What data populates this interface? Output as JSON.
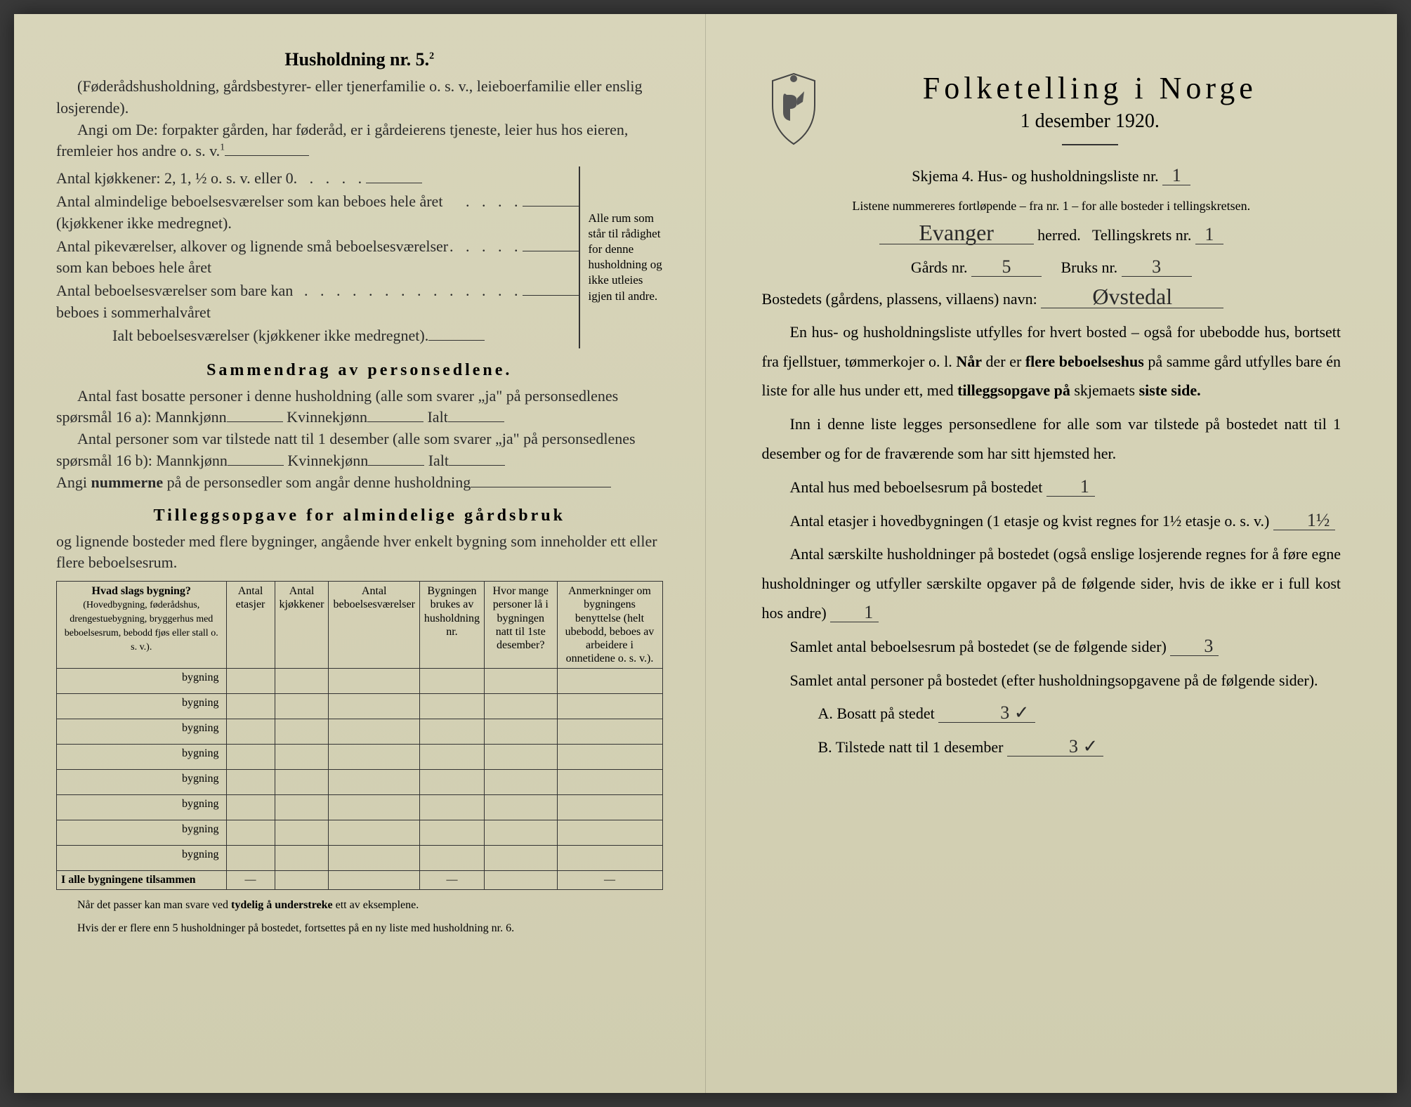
{
  "leftPage": {
    "h5": {
      "title": "Husholdning nr. 5.",
      "sup": "2",
      "paren": "(Føderådshusholdning, gårdsbestyrer- eller tjenerfamilie o. s. v., leieboerfamilie eller enslig losjerende).",
      "angi": "Angi om De:  forpakter gården, har føderåd, er i gårdeierens tjeneste, leier hus hos eieren, fremleier hos andre o. s. v.",
      "angiSup": "1",
      "kjokken": "Antal kjøkkener: 2, 1, ½ o. s. v. eller 0",
      "rows": [
        "Antal almindelige beboelsesværelser som kan beboes hele året (kjøkkener ikke medregnet).",
        "Antal pikeværelser, alkover og lignende små beboelsesværelser som kan beboes hele året",
        "Antal beboelsesværelser som bare kan beboes i sommerhalvåret"
      ],
      "ialt": "Ialt beboelsesværelser (kjøkkener ikke medregnet).",
      "braceText": "Alle rum som står til rådighet for denne husholdning og ikke utleies igjen til andre."
    },
    "sammendrag": {
      "title": "Sammendrag av personsedlene.",
      "line1": "Antal fast bosatte personer i denne husholdning (alle som svarer „ja\" på personsedlenes spørsmål 16 a): Mannkjønn",
      "kvinne": "Kvinnekjønn",
      "ialt": "Ialt",
      "line2": "Antal personer som var tilstede natt til 1 desember (alle som svarer „ja\" på personsedlenes spørsmål 16 b): Mannkjønn",
      "angi": "Angi nummerne på de personsedler som angår denne husholdning"
    },
    "tillegg": {
      "title": "Tilleggsopgave for almindelige gårdsbruk",
      "sub": "og lignende bosteder med flere bygninger, angående hver enkelt bygning som inneholder ett eller flere beboelsesrum.",
      "headers": {
        "col1": "Hvad slags bygning?",
        "col1sub": "(Hovedbygning, føderådshus, drengestuebygning, bryggerhus med beboelsesrum, bebodd fjøs eller stall o. s. v.).",
        "col2": "Antal etasjer",
        "col3": "Antal kjøkkener",
        "col4": "Antal beboelsesværelser",
        "col5": "Bygningen brukes av husholdning nr.",
        "col6": "Hvor mange personer lå i bygningen natt til 1ste desember?",
        "col7": "Anmerkninger om bygningens benyttelse (helt ubebodd, beboes av arbeidere i onnetidene o. s. v.)."
      },
      "bygning": "bygning",
      "totalRow": "I alle bygningene tilsammen",
      "footnote1": "Når det passer kan man svare ved tydelig å understreke ett av eksemplene.",
      "footnote2": "Hvis der er flere enn 5 husholdninger på bostedet, fortsettes på en ny liste med husholdning nr. 6."
    }
  },
  "rightPage": {
    "mainTitle": "Folketelling i Norge",
    "subTitle": "1 desember 1920.",
    "skjema": "Skjema 4.  Hus- og husholdningsliste nr.",
    "skjemaVal": "1",
    "listene": "Listene nummereres fortløpende – fra nr. 1 – for alle bosteder i tellingskretsen.",
    "herred": "herred.",
    "herredVal": "Evanger",
    "tellingskrets": "Tellingskrets nr.",
    "tellingskretsVal": "1",
    "gards": "Gårds nr.",
    "gardsVal": "5",
    "bruks": "Bruks nr.",
    "bruksVal": "3",
    "bostedets": "Bostedets (gårdens, plassens, villaens) navn:",
    "bostedetsVal": "Øvstedal",
    "para1": "En hus- og husholdningsliste utfylles for hvert bosted – også for ubebodde hus, bortsett fra fjellstuer, tømmerkojer o. l.  Når der er flere beboelseshus på samme gård utfylles bare én liste for alle hus under ett, med tilleggsopgave på skjemaets siste side.",
    "para2": "Inn i denne liste legges personsedlene for alle som var tilstede på bostedet natt til 1 desember og for de fraværende som har sitt hjemsted her.",
    "antalHus": "Antal hus med beboelsesrum på bostedet",
    "antalHusVal": "1",
    "antalEtasjer": "Antal etasjer i hovedbygningen (1 etasje og kvist regnes for 1½ etasje o. s. v.)",
    "antalEtasjerVal": "1½",
    "antalSaerskilte": "Antal særskilte husholdninger på bostedet (også enslige losjerende regnes for å føre egne husholdninger og utfyller særskilte opgaver på de følgende sider, hvis de ikke er i full kost hos andre)",
    "antalSaerskilteVal": "1",
    "samletBeboelse": "Samlet antal beboelsesrum på bostedet (se de følgende sider)",
    "samletBeboelseVal": "3",
    "samletPersoner": "Samlet antal personer på bostedet (efter husholdningsopgavene på de følgende sider).",
    "bosatt": "A.  Bosatt på stedet",
    "bosattVal": "3 ✓",
    "tilstede": "B.  Tilstede natt til 1 desember",
    "tilstedeVal": "3  ✓"
  }
}
